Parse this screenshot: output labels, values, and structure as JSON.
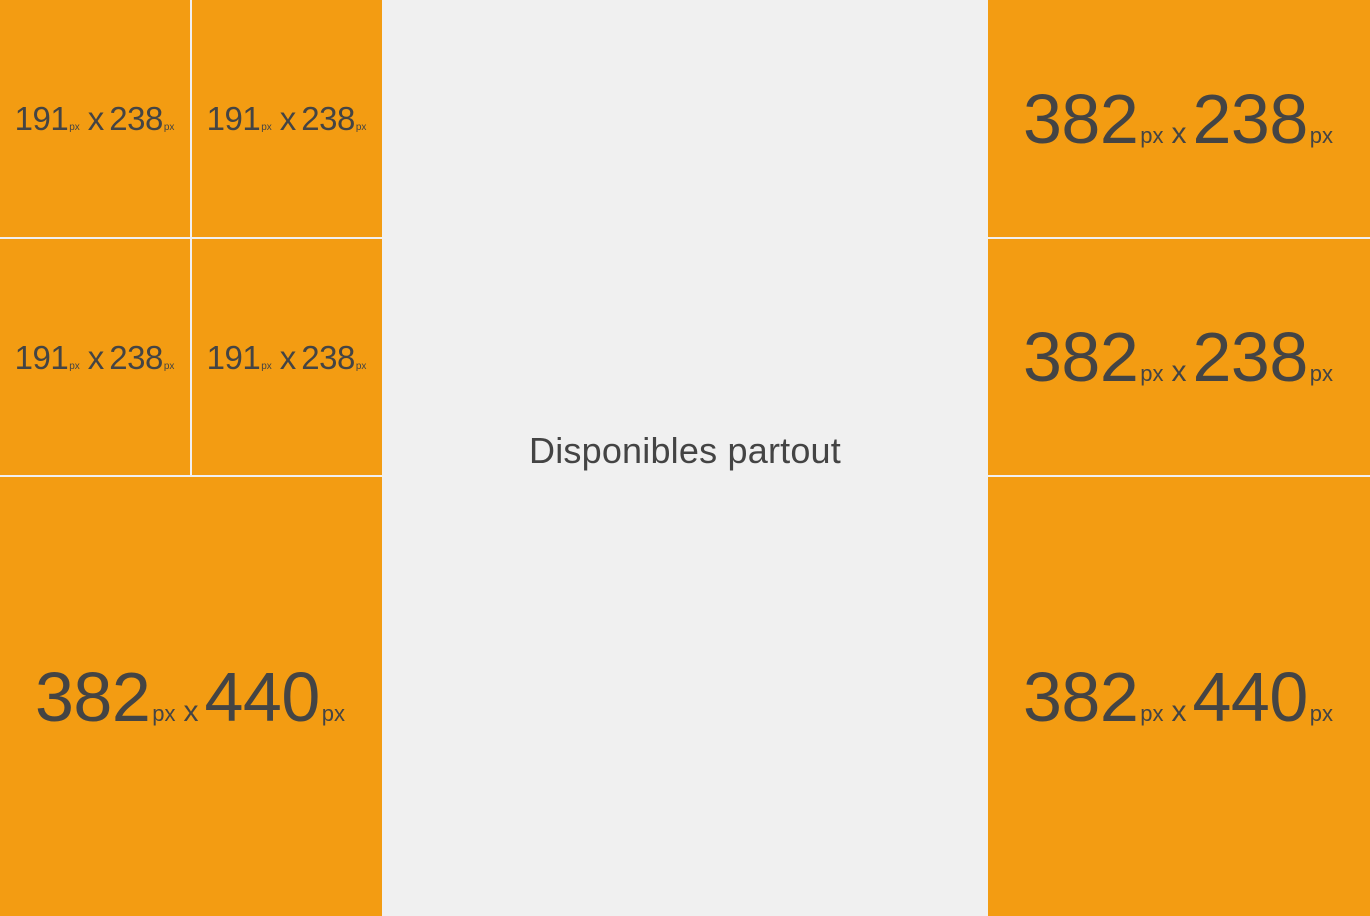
{
  "center": {
    "label": "Disponibles partout"
  },
  "left": {
    "small_tiles": [
      {
        "width": "191",
        "height": "238",
        "unit": "px",
        "sep": "x"
      },
      {
        "width": "191",
        "height": "238",
        "unit": "px",
        "sep": "x"
      },
      {
        "width": "191",
        "height": "238",
        "unit": "px",
        "sep": "x"
      },
      {
        "width": "191",
        "height": "238",
        "unit": "px",
        "sep": "x"
      }
    ],
    "large_tile": {
      "width": "382",
      "height": "440",
      "unit": "px",
      "sep": "x"
    }
  },
  "right": {
    "tiles": [
      {
        "width": "382",
        "height": "238",
        "unit": "px",
        "sep": "x"
      },
      {
        "width": "382",
        "height": "238",
        "unit": "px",
        "sep": "x"
      },
      {
        "width": "382",
        "height": "440",
        "unit": "px",
        "sep": "x"
      }
    ]
  },
  "colors": {
    "tile": "#f39c12",
    "text": "#444444",
    "background": "#f0f0f0"
  }
}
